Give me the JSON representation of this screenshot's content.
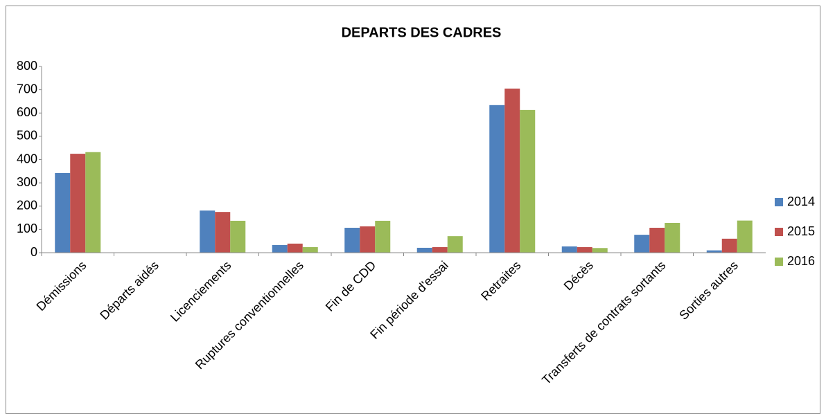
{
  "chart_data": {
    "type": "bar",
    "title": "DEPARTS DES CADRES",
    "categories": [
      "Démissions",
      "Départs aidés",
      "Licenciements",
      "Ruptures conventionnelles",
      "Fin de CDD",
      "Fin période d'essai",
      "Retraites",
      "Décès",
      "Transferts de contrats sortants",
      "Sorties autres"
    ],
    "series": [
      {
        "name": "2014",
        "color": "#4f81bd",
        "values": [
          342,
          0,
          181,
          33,
          107,
          21,
          634,
          27,
          77,
          10
        ]
      },
      {
        "name": "2015",
        "color": "#c0504d",
        "values": [
          425,
          0,
          175,
          39,
          113,
          24,
          705,
          24,
          107,
          60
        ]
      },
      {
        "name": "2016",
        "color": "#9bbb59",
        "values": [
          432,
          0,
          137,
          24,
          137,
          71,
          613,
          20,
          128,
          138
        ]
      }
    ],
    "ylim": [
      0,
      800
    ],
    "yticks": [
      0,
      100,
      200,
      300,
      400,
      500,
      600,
      700,
      800
    ],
    "grid": false,
    "legend": "right"
  }
}
